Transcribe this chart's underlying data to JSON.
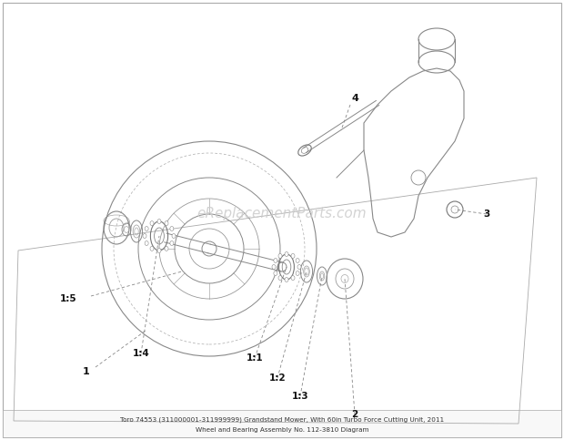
{
  "title_line1": "Toro 74553 (311000001-311999999) Grandstand Mower, With 60in Turbo Force Cutting Unit, 2011",
  "title_line2": "Wheel and Bearing Assembly No. 112-3810 Diagram",
  "background_color": "#ffffff",
  "border_color": "#cccccc",
  "line_color": "#888888",
  "dark_line": "#555555",
  "label_color": "#111111",
  "watermark_text": "eReplacementParts.com",
  "watermark_color": "#cccccc",
  "figsize": [
    6.2,
    4.83
  ],
  "dpi": 100
}
